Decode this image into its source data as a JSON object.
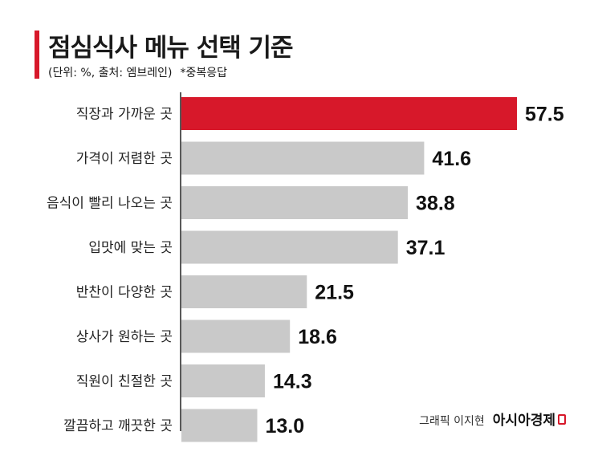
{
  "header": {
    "title": "점심식사 메뉴 선택 기준",
    "source": "(단위: %, 출처: 엠브레인)",
    "note": "*중복응답"
  },
  "credit": {
    "byline": "그래픽 이지현",
    "brand": "아시아경제"
  },
  "colors": {
    "highlight": "#d7182a",
    "bar": "#c9c9c9",
    "accent": "#d7182a"
  },
  "chart_data": {
    "type": "bar",
    "orientation": "horizontal",
    "categories": [
      "직장과 가까운 곳",
      "가격이 저렴한 곳",
      "음식이 빨리 나오는 곳",
      "입맛에 맞는 곳",
      "반찬이 다양한 곳",
      "상사가 원하는 곳",
      "직원이 친절한 곳",
      "깔끔하고 깨끗한 곳"
    ],
    "values": [
      57.5,
      41.6,
      38.8,
      37.1,
      21.5,
      18.6,
      14.3,
      13.0
    ],
    "value_labels": [
      "57.5",
      "41.6",
      "38.8",
      "37.1",
      "21.5",
      "18.6",
      "14.3",
      "13.0"
    ],
    "highlight_index": 0,
    "xlim": [
      0,
      57.5
    ],
    "grid": false,
    "axes": false
  }
}
